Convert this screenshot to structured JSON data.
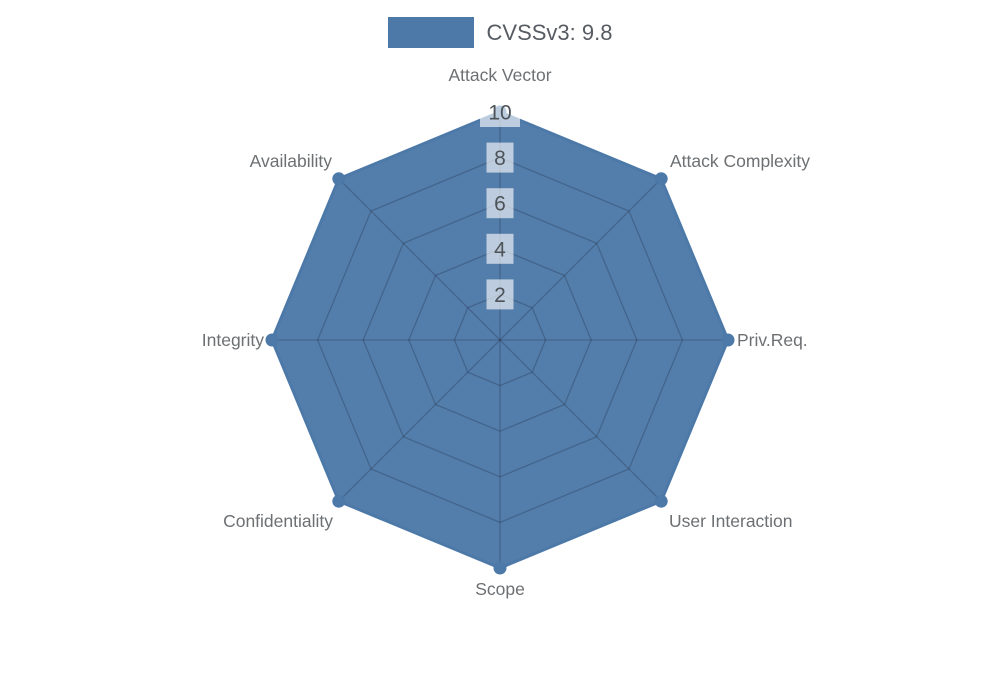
{
  "chart_data": {
    "type": "radar",
    "title": "",
    "categories": [
      "Attack Vector",
      "Attack Complexity",
      "Priv.Req.",
      "User Interaction",
      "Scope",
      "Confidentiality",
      "Integrity",
      "Availability"
    ],
    "series": [
      {
        "name": "CVSSv3: 9.8",
        "values": [
          10,
          10,
          10,
          10,
          10,
          10,
          10,
          10
        ]
      }
    ],
    "rlim": [
      0,
      10
    ],
    "rticks": [
      2,
      4,
      6,
      8,
      10
    ],
    "rtick_labels": [
      "2",
      "4",
      "6",
      "8",
      "10"
    ],
    "grid": true,
    "legend_position": "top-center",
    "colors": {
      "fill": "#4d79a8",
      "line": "#4d79a8",
      "marker": "#4d79a8",
      "grid_line": "#1e283c",
      "tick_text": "#4d5358",
      "tick_backdrop": "#ffffff",
      "point_label": "#6d7073",
      "legend_text": "#565c62",
      "background": "#ffffff"
    }
  }
}
